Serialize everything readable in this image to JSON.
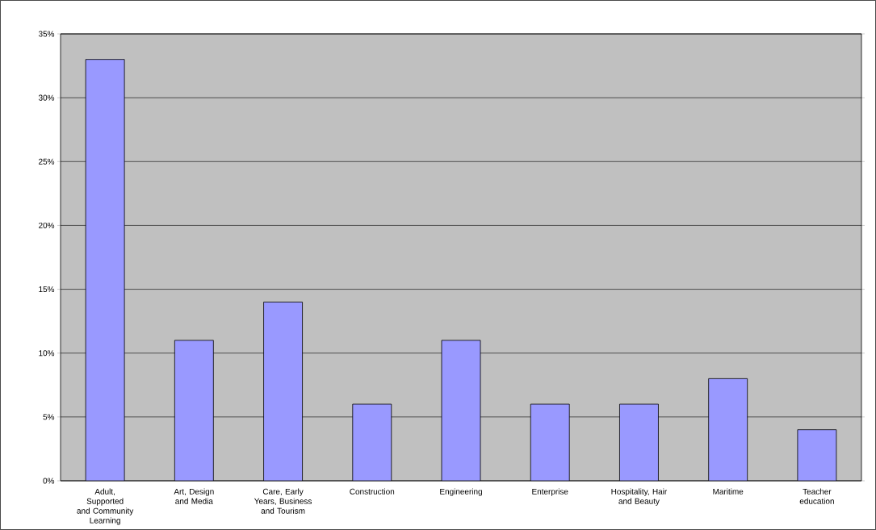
{
  "chart_data": {
    "type": "bar",
    "categories": [
      "Adult, Supported and Community Learning",
      "Art, Design and Media",
      "Care, Early Years, Business and Tourism",
      "Construction",
      "Engineering",
      "Enterprise",
      "Hospitality, Hair and Beauty",
      "Maritime",
      "Teacher education"
    ],
    "values": [
      33,
      11,
      14,
      6,
      11,
      6,
      6,
      8,
      4
    ],
    "color": "#9999ff",
    "ylim": [
      0,
      35
    ],
    "yticks": [
      {
        "value": 0,
        "label": "0%"
      },
      {
        "value": 5,
        "label": "5%"
      },
      {
        "value": 10,
        "label": "10%"
      },
      {
        "value": 15,
        "label": "15%"
      },
      {
        "value": 20,
        "label": "20%"
      },
      {
        "value": 25,
        "label": "25%"
      },
      {
        "value": 30,
        "label": "30%"
      },
      {
        "value": 35,
        "label": "35%"
      }
    ],
    "grid": "y"
  }
}
